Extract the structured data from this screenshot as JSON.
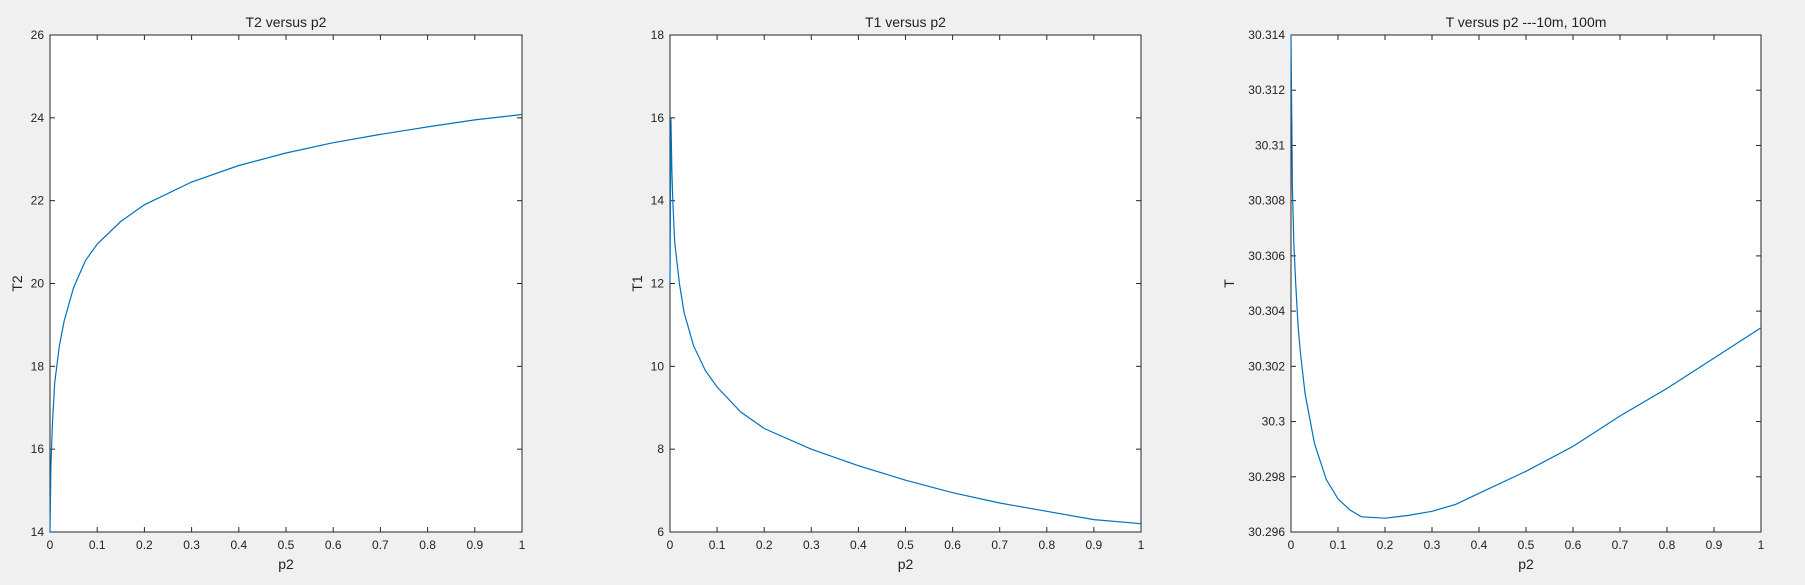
{
  "figure": {
    "background": "#f0f0f0",
    "line_color": "#0072bd"
  },
  "chart_data": [
    {
      "type": "line",
      "title": "T2 versus p2",
      "xlabel": "p2",
      "ylabel": "T2",
      "xlim": [
        0,
        1
      ],
      "ylim": [
        14,
        26
      ],
      "xticks": [
        "0",
        "0.1",
        "0.2",
        "0.3",
        "0.4",
        "0.5",
        "0.6",
        "0.7",
        "0.8",
        "0.9",
        "1"
      ],
      "yticks": [
        "14",
        "16",
        "18",
        "20",
        "22",
        "24",
        "26"
      ],
      "grid": false,
      "series": [
        {
          "x": [
            0,
            0.002,
            0.005,
            0.01,
            0.02,
            0.03,
            0.05,
            0.075,
            0.1,
            0.15,
            0.2,
            0.3,
            0.4,
            0.5,
            0.6,
            0.7,
            0.8,
            0.9,
            1.0
          ],
          "values": [
            14.0,
            15.6,
            16.6,
            17.6,
            18.5,
            19.1,
            19.9,
            20.55,
            20.95,
            21.5,
            21.9,
            22.45,
            22.85,
            23.15,
            23.4,
            23.6,
            23.78,
            23.95,
            24.08
          ]
        }
      ]
    },
    {
      "type": "line",
      "title": "T1 versus p2",
      "xlabel": "p2",
      "ylabel": "T1",
      "xlim": [
        0,
        1
      ],
      "ylim": [
        6,
        18
      ],
      "xticks": [
        "0",
        "0.1",
        "0.2",
        "0.3",
        "0.4",
        "0.5",
        "0.6",
        "0.7",
        "0.8",
        "0.9",
        "1"
      ],
      "yticks": [
        "6",
        "8",
        "10",
        "12",
        "14",
        "16",
        "18"
      ],
      "grid": false,
      "series": [
        {
          "x": [
            0,
            0.002,
            0.004,
            0.006,
            0.01,
            0.02,
            0.03,
            0.05,
            0.075,
            0.1,
            0.15,
            0.2,
            0.3,
            0.4,
            0.5,
            0.6,
            0.7,
            0.8,
            0.9,
            1.0
          ],
          "values": [
            12.0,
            16.0,
            14.7,
            14.0,
            13.0,
            12.0,
            11.3,
            10.5,
            9.9,
            9.5,
            8.9,
            8.5,
            8.0,
            7.6,
            7.25,
            6.95,
            6.7,
            6.5,
            6.3,
            6.2
          ]
        }
      ]
    },
    {
      "type": "line",
      "title": "T versus p2 ---10m, 100m",
      "xlabel": "p2",
      "ylabel": "T",
      "xlim": [
        0,
        1
      ],
      "ylim": [
        30.296,
        30.314
      ],
      "xticks": [
        "0",
        "0.1",
        "0.2",
        "0.3",
        "0.4",
        "0.5",
        "0.6",
        "0.7",
        "0.8",
        "0.9",
        "1"
      ],
      "yticks": [
        "30.296",
        "30.298",
        "30.3",
        "30.302",
        "30.304",
        "30.306",
        "30.308",
        "30.31",
        "30.312",
        "30.314"
      ],
      "grid": false,
      "series": [
        {
          "x": [
            0,
            0.003,
            0.006,
            0.01,
            0.015,
            0.02,
            0.03,
            0.05,
            0.075,
            0.1,
            0.125,
            0.15,
            0.2,
            0.25,
            0.3,
            0.35,
            0.4,
            0.5,
            0.6,
            0.7,
            0.8,
            0.9,
            1.0
          ],
          "values": [
            30.314,
            30.3085,
            30.3065,
            30.305,
            30.3035,
            30.3025,
            30.301,
            30.2992,
            30.2979,
            30.2972,
            30.2968,
            30.29655,
            30.2965,
            30.2966,
            30.29675,
            30.297,
            30.2974,
            30.2982,
            30.2991,
            30.3002,
            30.3012,
            30.3023,
            30.3034
          ]
        }
      ]
    }
  ]
}
